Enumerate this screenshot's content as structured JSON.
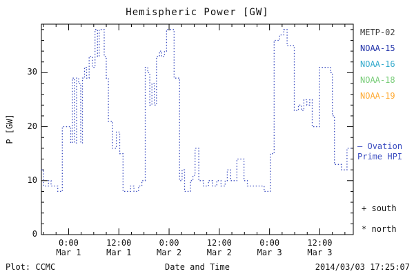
{
  "title": "Hemispheric Power [GW]",
  "axes": {
    "y_label": "P [GW]",
    "x_label": "Date and Time",
    "y_ticks": [
      0,
      10,
      20,
      30
    ],
    "y_minor_step": 2,
    "x_minor_step": 3,
    "x_ticks": [
      {
        "hour": 0,
        "time": "0:00",
        "date": "Mar 1"
      },
      {
        "hour": 12,
        "time": "12:00",
        "date": "Mar 1"
      },
      {
        "hour": 24,
        "time": "0:00",
        "date": "Mar 2"
      },
      {
        "hour": 36,
        "time": "12:00",
        "date": "Mar 2"
      },
      {
        "hour": 48,
        "time": "0:00",
        "date": "Mar 3"
      },
      {
        "hour": 60,
        "time": "12:00",
        "date": "Mar 3"
      }
    ],
    "x_range": [
      -6.5,
      68
    ],
    "y_range": [
      0,
      39
    ]
  },
  "legend": {
    "satellites": [
      {
        "label": "METP-02",
        "color": "#3a3a3a"
      },
      {
        "label": "NOAA-15",
        "color": "#2233aa"
      },
      {
        "label": "NOAA-16",
        "color": "#33aacc"
      },
      {
        "label": "NOAA-18",
        "color": "#77cc77"
      },
      {
        "label": "NOAA-19",
        "color": "#ffaa33"
      }
    ],
    "ovation": {
      "dash": "—",
      "line1": "Ovation",
      "line2": "Prime HPI",
      "color": "#3a4cc0"
    },
    "south_marker": "+",
    "south_label": "south",
    "north_marker": "*",
    "north_label": "north"
  },
  "footer": {
    "plot_credit": "Plot: CCMC",
    "timestamp": "2014/03/03 17:25:07"
  },
  "chart_data": {
    "type": "line",
    "style": "dotted-step",
    "title": "Hemispheric Power [GW]",
    "xlabel": "Date and Time",
    "ylabel": "P [GW]",
    "x_unit": "hours from 2014-03-01 00:00 UT",
    "xlim": [
      -6.5,
      68
    ],
    "ylim": [
      0,
      39
    ],
    "grid": false,
    "legend_position": "right",
    "series": [
      {
        "name": "Ovation Prime HPI",
        "color": "#3a4cc0",
        "points": [
          [
            -6.5,
            12
          ],
          [
            -6,
            9
          ],
          [
            -4.8,
            10
          ],
          [
            -4.2,
            9
          ],
          [
            -2.6,
            8
          ],
          [
            -1.5,
            20
          ],
          [
            0.5,
            17
          ],
          [
            0.9,
            29
          ],
          [
            1.4,
            17
          ],
          [
            1.9,
            29
          ],
          [
            2.4,
            28
          ],
          [
            2.9,
            17
          ],
          [
            3.3,
            29
          ],
          [
            3.8,
            31
          ],
          [
            4.3,
            29
          ],
          [
            4.9,
            33
          ],
          [
            5.7,
            31
          ],
          [
            6.3,
            38
          ],
          [
            6.9,
            33
          ],
          [
            7.3,
            38
          ],
          [
            8.5,
            33
          ],
          [
            9.0,
            29
          ],
          [
            9.5,
            21
          ],
          [
            10.5,
            16
          ],
          [
            11.4,
            19
          ],
          [
            12.2,
            15
          ],
          [
            13.0,
            8
          ],
          [
            14.8,
            9
          ],
          [
            15.6,
            8
          ],
          [
            16.7,
            9
          ],
          [
            17.5,
            10
          ],
          [
            18.3,
            31
          ],
          [
            18.9,
            30
          ],
          [
            19.4,
            24
          ],
          [
            19.9,
            28
          ],
          [
            20.5,
            24
          ],
          [
            21.0,
            33
          ],
          [
            21.7,
            34
          ],
          [
            22.2,
            33
          ],
          [
            22.9,
            34
          ],
          [
            23.4,
            38
          ],
          [
            25.2,
            29
          ],
          [
            26.5,
            10
          ],
          [
            27.1,
            12
          ],
          [
            27.7,
            8
          ],
          [
            29.1,
            10
          ],
          [
            29.7,
            11
          ],
          [
            30.2,
            16
          ],
          [
            31.1,
            10
          ],
          [
            32.2,
            9
          ],
          [
            33.4,
            10
          ],
          [
            34.4,
            9
          ],
          [
            35.4,
            10
          ],
          [
            36.4,
            9
          ],
          [
            37.4,
            10
          ],
          [
            37.9,
            12
          ],
          [
            38.7,
            10
          ],
          [
            40.2,
            14
          ],
          [
            41.9,
            10
          ],
          [
            42.7,
            9
          ],
          [
            46.7,
            8
          ],
          [
            48.2,
            15
          ],
          [
            49.1,
            36
          ],
          [
            50.4,
            37
          ],
          [
            51.4,
            38
          ],
          [
            52.2,
            35
          ],
          [
            53.9,
            23
          ],
          [
            54.9,
            24
          ],
          [
            55.6,
            23
          ],
          [
            56.2,
            25
          ],
          [
            56.9,
            24
          ],
          [
            57.6,
            25
          ],
          [
            58.2,
            20
          ],
          [
            59.9,
            31
          ],
          [
            62.6,
            30
          ],
          [
            63.0,
            22
          ],
          [
            63.5,
            13
          ],
          [
            65.2,
            12
          ],
          [
            66.5,
            16
          ]
        ]
      }
    ]
  }
}
